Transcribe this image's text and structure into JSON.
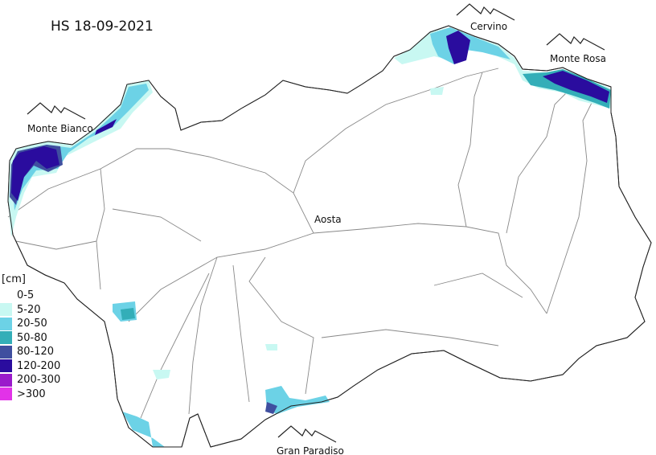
{
  "title": "HS 18-09-2021",
  "places": {
    "cervino": "Cervino",
    "monte_rosa": "Monte Rosa",
    "monte_bianco": "Monte Bianco",
    "aosta": "Aosta",
    "gran_paradiso": "Gran Paradiso"
  },
  "legend": {
    "unit": "[cm]",
    "items": [
      {
        "label": "0-5",
        "color": "#ffffff"
      },
      {
        "label": "5-20",
        "color": "#c8f8f2"
      },
      {
        "label": "20-50",
        "color": "#6cd2e6"
      },
      {
        "label": "50-80",
        "color": "#33aeb8"
      },
      {
        "label": "80-120",
        "color": "#3f4f9f"
      },
      {
        "label": "120-200",
        "color": "#2a0c9e"
      },
      {
        "label": "200-300",
        "color": "#9a1acb"
      },
      {
        "label": ">300",
        "color": "#e232e8"
      }
    ]
  }
}
